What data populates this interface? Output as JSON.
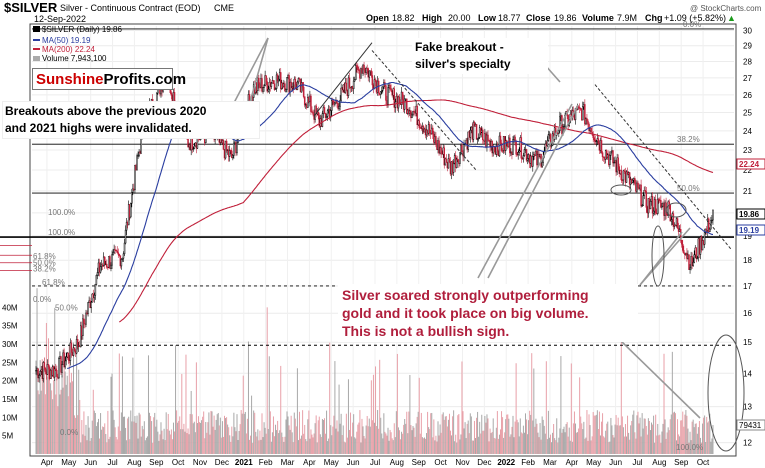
{
  "header": {
    "symbol": "$SILVER",
    "name": "Silver - Continuous Contract (EOD)",
    "exchange": "CME",
    "date": "12-Sep-2022",
    "open_label": "Open",
    "open": "18.82",
    "high_label": "High",
    "high": "20.00",
    "low_label": "Low",
    "low": "18.77",
    "close_label": "Close",
    "close": "19.86",
    "volume_label": "Volume",
    "volume": "7.9M",
    "chg_label": "Chg",
    "chg": "+1.09 (+5.82%)",
    "up_arrow": "▲",
    "watermark": "@ StockCharts.com"
  },
  "legend": {
    "main": "$SILVER (Daily) 19.86",
    "ma50": "MA(50) 19.19",
    "ma200": "MA(200) 22.24",
    "volume": "Volume 7,943,100"
  },
  "logo": {
    "part1": "Sunshine",
    "part2": "Profits",
    "part3": ".com"
  },
  "annotations": {
    "breakouts": [
      "Breakouts above the previous 2020",
      "and 2021 highs were invalidated."
    ],
    "fake": [
      "Fake breakout -",
      "silver's specialty"
    ],
    "soared": [
      "Silver soared strongly outperforming",
      "gold and it took place on big volume.",
      "This is not a bullish sign."
    ]
  },
  "fib_labels": [
    {
      "text": "0.0%"
    },
    {
      "text": "38.2%"
    },
    {
      "text": "50.0%"
    },
    {
      "text": "100.0%"
    },
    {
      "text": "100.0%"
    },
    {
      "text": "61.8%"
    },
    {
      "text": "50.0%"
    },
    {
      "text": "38.2%"
    },
    {
      "text": "61.8%"
    },
    {
      "text": "0.0%"
    },
    {
      "text": "50.0%"
    },
    {
      "text": "0.0%"
    },
    {
      "text": "100.0%"
    }
  ],
  "price_badges": {
    "close": "19.86",
    "ma50": "19.19",
    "ma200": "22.24",
    "volume": "79431"
  },
  "colors": {
    "up": "#000000",
    "down": "#c0203a",
    "ma50": "#2a3ea0",
    "ma200": "#c0203a",
    "annotation_red": "#b01e3c",
    "vol_up": "#a8a8a8",
    "vol_down": "#e8a0a8",
    "logo_red": "#cc0000"
  },
  "chart_data": {
    "type": "candlestick",
    "x_axis_labels": [
      "Apr",
      "May",
      "Jun",
      "Jul",
      "Aug",
      "Sep",
      "Oct",
      "Nov",
      "Dec",
      "2021",
      "Feb",
      "Mar",
      "Apr",
      "May",
      "Jun",
      "Jul",
      "Aug",
      "Sep",
      "Oct",
      "Nov",
      "Dec",
      "2022",
      "Feb",
      "Mar",
      "Apr",
      "May",
      "Jun",
      "Jul",
      "Aug",
      "Sep",
      "Oct"
    ],
    "y_ticks": [
      12,
      13,
      14,
      15,
      16,
      17,
      18,
      19,
      20,
      21,
      22,
      23,
      24,
      25,
      26,
      27,
      28,
      29,
      30
    ],
    "y_range": [
      11.7,
      30.3
    ],
    "volume_ticks": [
      "5M",
      "10M",
      "15M",
      "20M",
      "25M",
      "30M",
      "35M",
      "40M"
    ],
    "volume_range_millions": [
      0,
      42
    ],
    "scale": "log",
    "monthly_closes": [
      {
        "m": "Mar-2020",
        "close": 14.1
      },
      {
        "m": "Apr-2020",
        "close": 15.0
      },
      {
        "m": "May-2020",
        "close": 17.8
      },
      {
        "m": "Jun-2020",
        "close": 18.2
      },
      {
        "m": "Jul-2020",
        "close": 24.4
      },
      {
        "m": "Aug-2020",
        "close": 27.3
      },
      {
        "m": "Sep-2020",
        "close": 23.4
      },
      {
        "m": "Oct-2020",
        "close": 23.9
      },
      {
        "m": "Nov-2020",
        "close": 22.6
      },
      {
        "m": "Dec-2020",
        "close": 26.4
      },
      {
        "m": "Jan-2021",
        "close": 26.9
      },
      {
        "m": "Feb-2021",
        "close": 26.6
      },
      {
        "m": "Mar-2021",
        "close": 24.5
      },
      {
        "m": "Apr-2021",
        "close": 25.9
      },
      {
        "m": "May-2021",
        "close": 27.8
      },
      {
        "m": "Jun-2021",
        "close": 26.1
      },
      {
        "m": "Jul-2021",
        "close": 25.5
      },
      {
        "m": "Aug-2021",
        "close": 24.0
      },
      {
        "m": "Sep-2021",
        "close": 22.1
      },
      {
        "m": "Oct-2021",
        "close": 24.0
      },
      {
        "m": "Nov-2021",
        "close": 23.2
      },
      {
        "m": "Dec-2021",
        "close": 23.3
      },
      {
        "m": "Jan-2022",
        "close": 22.4
      },
      {
        "m": "Feb-2022",
        "close": 24.3
      },
      {
        "m": "Mar-2022",
        "close": 25.1
      },
      {
        "m": "Apr-2022",
        "close": 23.0
      },
      {
        "m": "May-2022",
        "close": 21.7
      },
      {
        "m": "Jun-2022",
        "close": 20.4
      },
      {
        "m": "Jul-2022",
        "close": 20.2
      },
      {
        "m": "Aug-2022",
        "close": 17.8
      },
      {
        "m": "Sep-2022",
        "close": 19.86
      }
    ],
    "horizontal_levels": [
      30.1,
      23.3,
      20.9,
      18.95,
      17.0,
      14.9
    ]
  }
}
